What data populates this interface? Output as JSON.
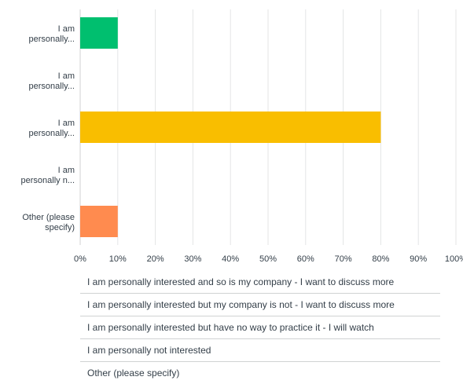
{
  "chart_data": {
    "type": "bar",
    "orientation": "horizontal",
    "categories": [
      "I am personally...",
      "I am personally...",
      "I am personally...",
      "I am personally n...",
      "Other (please specify)"
    ],
    "category_lines": [
      [
        "I am",
        "personally..."
      ],
      [
        "I am",
        "personally..."
      ],
      [
        "I am",
        "personally..."
      ],
      [
        "I am",
        "personally n..."
      ],
      [
        "Other (please",
        "specify)"
      ]
    ],
    "values": [
      10,
      0,
      80,
      0,
      10
    ],
    "colors": [
      "#00bf6f",
      "#507cb6",
      "#f9be00",
      "#6bc8cd",
      "#ff8b4f"
    ],
    "xlim": [
      0,
      100
    ],
    "xticks": [
      "0%",
      "10%",
      "20%",
      "30%",
      "40%",
      "50%",
      "60%",
      "70%",
      "80%",
      "90%",
      "100%"
    ],
    "grid": true,
    "legend_position": "bottom",
    "legend": [
      "I am personally interested and so is my company - I want to discuss more",
      "I am personally interested but my company is not - I want to discuss more",
      "I am personally interested but have no way to practice it - I will watch",
      "I am personally not interested",
      "Other (please specify)"
    ]
  }
}
